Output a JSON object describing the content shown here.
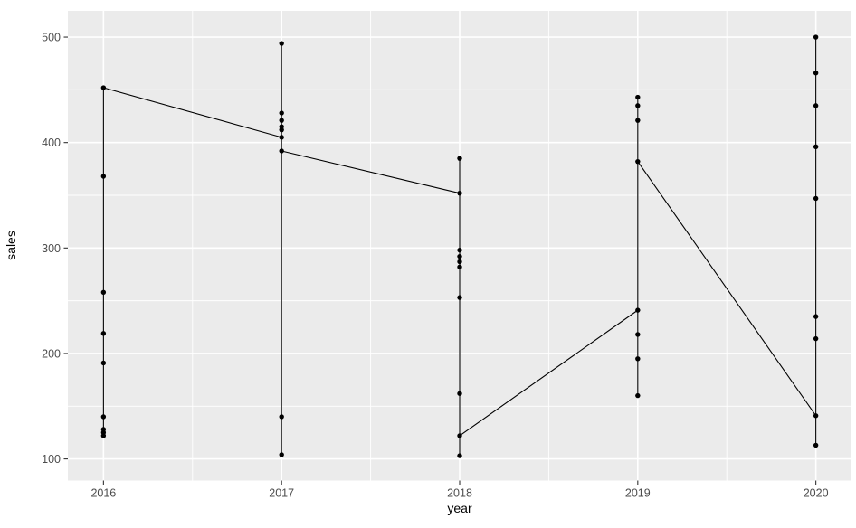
{
  "chart_data": {
    "type": "scatter",
    "title": "",
    "xlabel": "year",
    "ylabel": "sales",
    "x_ticks": [
      "2016",
      "2017",
      "2018",
      "2019",
      "2020"
    ],
    "x_tick_values": [
      2016,
      2017,
      2018,
      2019,
      2020
    ],
    "x_minor": [
      2016.5,
      2017.5,
      2018.5,
      2019.5
    ],
    "y_ticks": [
      "100",
      "200",
      "300",
      "400",
      "500"
    ],
    "y_tick_values": [
      100,
      200,
      300,
      400,
      500
    ],
    "y_minor": [
      150,
      250,
      350,
      450
    ],
    "xlim": [
      2015.8,
      2020.2
    ],
    "ylim": [
      79.5,
      524.9
    ],
    "grid": true,
    "legend": false,
    "theme": {
      "panel_bg": "#ebebeb",
      "grid_major_color": "#ffffff",
      "grid_minor_color": "#ffffff",
      "point_color": "#000000",
      "line_color": "#000000",
      "tick_mark_color": "#333333",
      "tick_label_color": "#4d4d4d",
      "axis_title_color": "#000000"
    },
    "series_by_year": [
      {
        "year": 2016,
        "values": [
          452,
          368,
          258,
          219,
          191,
          140,
          128,
          125,
          122
        ]
      },
      {
        "year": 2017,
        "values": [
          494,
          428,
          421,
          415,
          412,
          405,
          392,
          140,
          104
        ]
      },
      {
        "year": 2018,
        "values": [
          385,
          352,
          298,
          292,
          287,
          282,
          253,
          162,
          122,
          103
        ]
      },
      {
        "year": 2019,
        "values": [
          443,
          435,
          421,
          382,
          241,
          218,
          195,
          160
        ]
      },
      {
        "year": 2020,
        "values": [
          500,
          466,
          435,
          396,
          347,
          235,
          214,
          141,
          113
        ]
      }
    ],
    "vertical_lines": [
      {
        "year": 2016,
        "min": 122,
        "max": 452
      },
      {
        "year": 2017,
        "min": 104,
        "max": 494
      },
      {
        "year": 2018,
        "min": 103,
        "max": 385
      },
      {
        "year": 2019,
        "min": 160,
        "max": 443
      },
      {
        "year": 2020,
        "min": 113,
        "max": 500
      }
    ],
    "connectors": [
      {
        "from_year": 2016,
        "from_value": 452,
        "to_year": 2017,
        "to_value": 405
      },
      {
        "from_year": 2017,
        "from_value": 392,
        "to_year": 2018,
        "to_value": 352
      },
      {
        "from_year": 2018,
        "from_value": 122,
        "to_year": 2019,
        "to_value": 241
      },
      {
        "from_year": 2019,
        "from_value": 382,
        "to_year": 2020,
        "to_value": 141
      }
    ]
  }
}
